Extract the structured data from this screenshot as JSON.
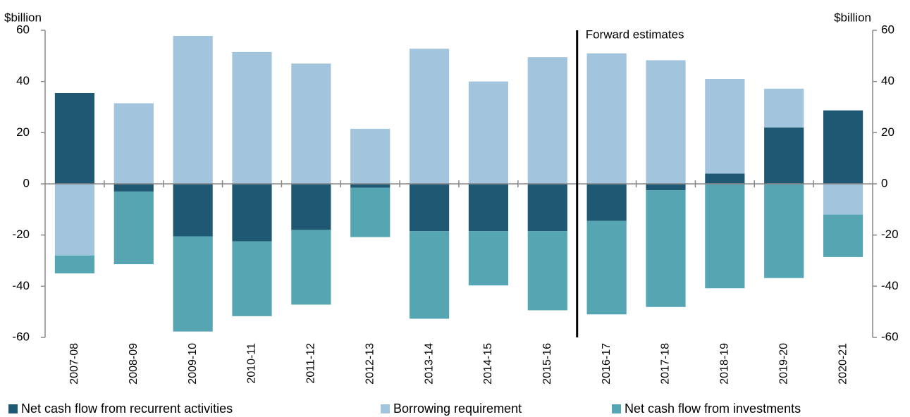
{
  "chart_data": {
    "type": "bar",
    "stacked": true,
    "y_label": "$billion",
    "y2_label": "$billion",
    "categories": [
      "2007-08",
      "2008-09",
      "2009-10",
      "2010-11",
      "2011-12",
      "2012-13",
      "2013-14",
      "2014-15",
      "2015-16",
      "2016-17",
      "2017-18",
      "2018-19",
      "2019-20",
      "2020-21"
    ],
    "series": [
      {
        "name": "Net cash flow from recurrent activities",
        "color": "#1f5872",
        "values": [
          35.5,
          -3,
          -20.5,
          -22.5,
          -18,
          -1.5,
          -18.5,
          -18.5,
          -18.5,
          -14.5,
          -2.5,
          4,
          22,
          28.7
        ]
      },
      {
        "name": "Borrowing requirement",
        "color": "#a2c4dc",
        "values": [
          -28,
          31.5,
          57.8,
          51.5,
          47,
          21.5,
          52.8,
          40,
          49.5,
          51,
          48.3,
          37,
          15.2,
          -12
        ]
      },
      {
        "name": "Net cash flow from investments",
        "color": "#56a5b3",
        "values": [
          -7,
          -28.4,
          -37.2,
          -29.2,
          -29.2,
          -19.3,
          -34.2,
          -21.2,
          -30.9,
          -36.5,
          -45.6,
          -40.8,
          -36.8,
          -16.6
        ]
      }
    ],
    "annotation": {
      "text": "Forward estimates",
      "before": "2016-17"
    },
    "ylim": [
      -60,
      60
    ],
    "yticks": [
      -60,
      -40,
      -20,
      0,
      20,
      40,
      60
    ],
    "y2lim": [
      -60,
      60
    ],
    "y2ticks": [
      -60,
      -40,
      -20,
      0,
      20,
      40,
      60
    ],
    "legend": "bottom"
  }
}
